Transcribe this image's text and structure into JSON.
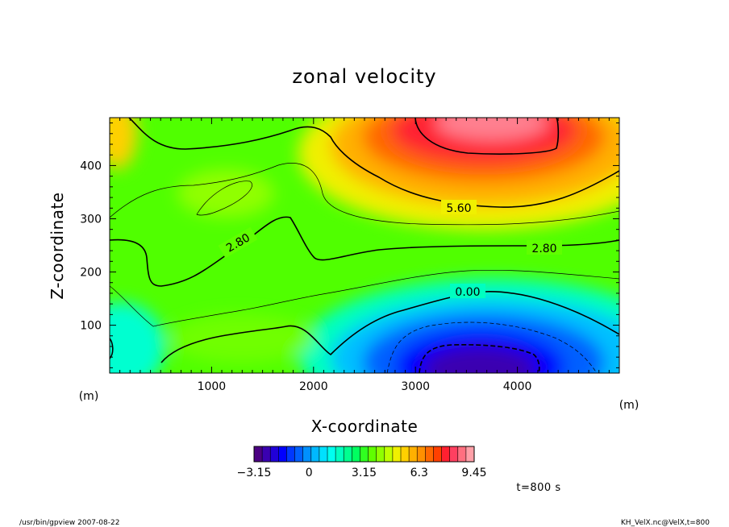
{
  "chart_data": {
    "type": "heatmap",
    "title": "zonal velocity",
    "xlabel": "X-coordinate",
    "ylabel": "Z-coordinate",
    "x_unit": "(m)",
    "y_unit": "(m)",
    "x_ticks": [
      1000,
      2000,
      3000,
      4000
    ],
    "y_ticks": [
      100,
      200,
      300,
      400
    ],
    "xlim": [
      0,
      5000
    ],
    "ylim": [
      10,
      490
    ],
    "contour_labels": [
      "5.60",
      "2.80",
      "2.80",
      "0.00"
    ],
    "colorbar": {
      "min": -3.15,
      "max": 9.45,
      "labels": [
        "-3.15",
        "0",
        "3.15",
        "6.3",
        "9.45"
      ],
      "tick_values": [
        -3.15,
        0,
        3.15,
        6.3,
        9.45
      ],
      "colors": [
        "#4b0082",
        "#3a00b0",
        "#2000d8",
        "#0000ff",
        "#0038ff",
        "#0060ff",
        "#0090ff",
        "#00b8ff",
        "#00e0ff",
        "#00fff0",
        "#00ffc0",
        "#00ff90",
        "#00ff60",
        "#30ff20",
        "#60ff00",
        "#90ff00",
        "#c0ff00",
        "#f0f000",
        "#ffd000",
        "#ffb000",
        "#ff9000",
        "#ff6800",
        "#ff4000",
        "#ff2030",
        "#ff4060",
        "#ff7080",
        "#ffa0a8"
      ]
    },
    "time_label": "t=800 s"
  },
  "footer": {
    "left": "/usr/bin/gpview   2007-08-22",
    "right": "KH_VelX.nc@VelX,t=800"
  }
}
